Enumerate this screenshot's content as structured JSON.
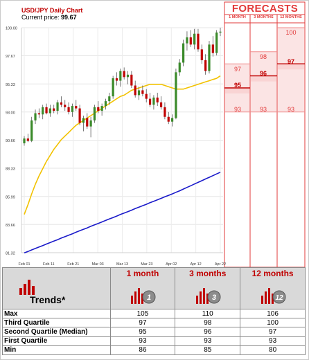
{
  "header": {
    "title": "USD/JPY Daily Chart",
    "price_label": "Current price:",
    "price_value": "99.67"
  },
  "forecast_panel": {
    "title": "FORECASTS",
    "columns": [
      "1 MONTH",
      "3 MONTHS",
      "12 MONTHS"
    ],
    "one_month": {
      "max": "97",
      "median": "95",
      "min": "93"
    },
    "three_months": {
      "max": "98",
      "median": "96",
      "min": "93"
    },
    "twelve_months": {
      "max": "100",
      "median": "97",
      "min": "93"
    }
  },
  "colors": {
    "red": "#e23a3a",
    "dark_red": "#c00000",
    "up_candle": "#3a8a2a",
    "down_candle": "#c00000",
    "ma_short": "#f2c200",
    "ma_long": "#1a1aca",
    "forecast_fill": "#fbe4e4",
    "forecast_band": "#f9d4d4",
    "header_gray": "#d9d9d9"
  },
  "chart_data": {
    "type": "candlestick",
    "title": "USD/JPY Daily Chart",
    "x_ticks": [
      "Feb 01",
      "Feb 11",
      "Feb 21",
      "Mar 03",
      "Mar 13",
      "Mar 23",
      "Apr 02",
      "Apr 12",
      "Apr 22"
    ],
    "y_ticks": [
      "100.00",
      "97.67",
      "95.33",
      "93.00",
      "90.66",
      "88.33",
      "85.99",
      "83.66",
      "81.32"
    ],
    "ylim": [
      81.32,
      100.0
    ],
    "candles": [
      {
        "o": 90.4,
        "h": 91.0,
        "l": 90.2,
        "c": 90.8
      },
      {
        "o": 90.8,
        "h": 91.2,
        "l": 90.5,
        "c": 90.6
      },
      {
        "o": 90.6,
        "h": 92.6,
        "l": 90.5,
        "c": 92.3
      },
      {
        "o": 92.3,
        "h": 93.2,
        "l": 92.0,
        "c": 92.9
      },
      {
        "o": 92.9,
        "h": 93.3,
        "l": 92.5,
        "c": 92.8
      },
      {
        "o": 92.8,
        "h": 93.6,
        "l": 92.4,
        "c": 93.4
      },
      {
        "o": 93.4,
        "h": 93.7,
        "l": 92.8,
        "c": 92.9
      },
      {
        "o": 92.9,
        "h": 93.6,
        "l": 92.6,
        "c": 93.3
      },
      {
        "o": 93.3,
        "h": 93.6,
        "l": 92.9,
        "c": 93.1
      },
      {
        "o": 93.1,
        "h": 94.0,
        "l": 92.8,
        "c": 93.8
      },
      {
        "o": 93.8,
        "h": 94.3,
        "l": 93.4,
        "c": 93.6
      },
      {
        "o": 93.6,
        "h": 94.0,
        "l": 93.1,
        "c": 93.4
      },
      {
        "o": 93.4,
        "h": 93.8,
        "l": 92.8,
        "c": 93.0
      },
      {
        "o": 93.0,
        "h": 93.7,
        "l": 92.6,
        "c": 93.5
      },
      {
        "o": 93.5,
        "h": 94.0,
        "l": 93.1,
        "c": 93.3
      },
      {
        "o": 93.3,
        "h": 93.6,
        "l": 91.9,
        "c": 92.1
      },
      {
        "o": 92.1,
        "h": 92.7,
        "l": 91.4,
        "c": 92.5
      },
      {
        "o": 92.5,
        "h": 92.9,
        "l": 91.6,
        "c": 91.8
      },
      {
        "o": 91.8,
        "h": 92.6,
        "l": 90.9,
        "c": 92.3
      },
      {
        "o": 92.3,
        "h": 93.6,
        "l": 92.1,
        "c": 93.4
      },
      {
        "o": 93.4,
        "h": 93.9,
        "l": 92.9,
        "c": 93.1
      },
      {
        "o": 93.1,
        "h": 93.7,
        "l": 92.7,
        "c": 93.5
      },
      {
        "o": 93.5,
        "h": 94.1,
        "l": 93.2,
        "c": 93.9
      },
      {
        "o": 93.9,
        "h": 94.6,
        "l": 93.6,
        "c": 94.3
      },
      {
        "o": 94.3,
        "h": 96.0,
        "l": 94.1,
        "c": 95.8
      },
      {
        "o": 95.8,
        "h": 96.3,
        "l": 95.2,
        "c": 95.6
      },
      {
        "o": 95.6,
        "h": 96.6,
        "l": 95.1,
        "c": 96.4
      },
      {
        "o": 96.4,
        "h": 96.7,
        "l": 95.7,
        "c": 95.9
      },
      {
        "o": 95.9,
        "h": 96.4,
        "l": 95.3,
        "c": 96.1
      },
      {
        "o": 96.1,
        "h": 96.4,
        "l": 95.0,
        "c": 95.2
      },
      {
        "o": 95.2,
        "h": 95.6,
        "l": 94.2,
        "c": 94.4
      },
      {
        "o": 94.4,
        "h": 95.1,
        "l": 94.0,
        "c": 94.8
      },
      {
        "o": 94.8,
        "h": 95.2,
        "l": 94.3,
        "c": 94.5
      },
      {
        "o": 94.5,
        "h": 94.9,
        "l": 93.8,
        "c": 94.1
      },
      {
        "o": 94.1,
        "h": 94.6,
        "l": 93.4,
        "c": 93.6
      },
      {
        "o": 93.6,
        "h": 94.4,
        "l": 93.2,
        "c": 94.2
      },
      {
        "o": 94.2,
        "h": 94.6,
        "l": 93.5,
        "c": 93.8
      },
      {
        "o": 93.8,
        "h": 94.3,
        "l": 93.2,
        "c": 93.4
      },
      {
        "o": 93.4,
        "h": 93.8,
        "l": 92.4,
        "c": 92.6
      },
      {
        "o": 92.6,
        "h": 93.0,
        "l": 92.0,
        "c": 92.2
      },
      {
        "o": 92.2,
        "h": 92.8,
        "l": 91.8,
        "c": 92.5
      },
      {
        "o": 92.5,
        "h": 96.6,
        "l": 92.4,
        "c": 96.3
      },
      {
        "o": 96.3,
        "h": 97.4,
        "l": 96.0,
        "c": 97.1
      },
      {
        "o": 97.1,
        "h": 99.0,
        "l": 96.8,
        "c": 98.7
      },
      {
        "o": 98.7,
        "h": 99.7,
        "l": 98.1,
        "c": 99.2
      },
      {
        "o": 99.2,
        "h": 99.8,
        "l": 98.4,
        "c": 98.6
      },
      {
        "o": 98.6,
        "h": 99.9,
        "l": 98.2,
        "c": 99.5
      },
      {
        "o": 99.5,
        "h": 99.9,
        "l": 98.0,
        "c": 98.2
      },
      {
        "o": 98.2,
        "h": 98.6,
        "l": 97.0,
        "c": 97.3
      },
      {
        "o": 97.3,
        "h": 97.8,
        "l": 96.1,
        "c": 96.4
      },
      {
        "o": 96.4,
        "h": 98.9,
        "l": 96.2,
        "c": 98.6
      },
      {
        "o": 98.6,
        "h": 99.3,
        "l": 97.6,
        "c": 97.9
      },
      {
        "o": 97.9,
        "h": 99.8,
        "l": 97.7,
        "c": 99.6
      },
      {
        "o": 99.6,
        "h": 100.0,
        "l": 99.3,
        "c": 99.67
      }
    ],
    "ma_short": [
      84.5,
      85.3,
      86.2,
      87.0,
      87.7,
      88.3,
      88.9,
      89.4,
      89.9,
      90.3,
      90.7,
      91.0,
      91.3,
      91.6,
      91.9,
      92.1,
      92.3,
      92.5,
      92.7,
      92.9,
      93.1,
      93.3,
      93.5,
      93.7,
      93.9,
      94.1,
      94.3,
      94.4,
      94.6,
      94.8,
      94.9,
      95.0,
      95.1,
      95.2,
      95.3,
      95.3,
      95.3,
      95.3,
      95.2,
      95.1,
      95.0,
      94.9,
      94.9,
      94.9,
      95.0,
      95.1,
      95.2,
      95.3,
      95.4,
      95.5,
      95.6,
      95.7,
      95.8,
      96.0
    ],
    "ma_long": [
      81.3,
      81.42,
      81.55,
      81.67,
      81.79,
      81.91,
      82.04,
      82.16,
      82.28,
      82.4,
      82.53,
      82.65,
      82.77,
      82.89,
      83.02,
      83.14,
      83.26,
      83.38,
      83.51,
      83.63,
      83.75,
      83.87,
      84.0,
      84.12,
      84.24,
      84.36,
      84.49,
      84.61,
      84.73,
      84.85,
      84.98,
      85.1,
      85.22,
      85.34,
      85.47,
      85.59,
      85.71,
      85.83,
      85.96,
      86.08,
      86.2,
      86.33,
      86.46,
      86.6,
      86.74,
      86.88,
      87.02,
      87.16,
      87.3,
      87.44,
      87.58,
      87.72,
      87.86,
      88.0
    ]
  },
  "trends": {
    "title": "Trends*",
    "headers": [
      "1 month",
      "3 months",
      "12 months"
    ],
    "icon_numbers": [
      "1",
      "3",
      "12"
    ],
    "rows": [
      {
        "label": "Max",
        "values": [
          "105",
          "110",
          "106"
        ]
      },
      {
        "label": "Third Quartile",
        "values": [
          "97",
          "98",
          "100"
        ]
      },
      {
        "label": "Second Quartile (Median)",
        "values": [
          "95",
          "96",
          "97"
        ]
      },
      {
        "label": "First Quartile",
        "values": [
          "93",
          "93",
          "93"
        ]
      },
      {
        "label": "Min",
        "values": [
          "86",
          "85",
          "80"
        ]
      }
    ]
  }
}
